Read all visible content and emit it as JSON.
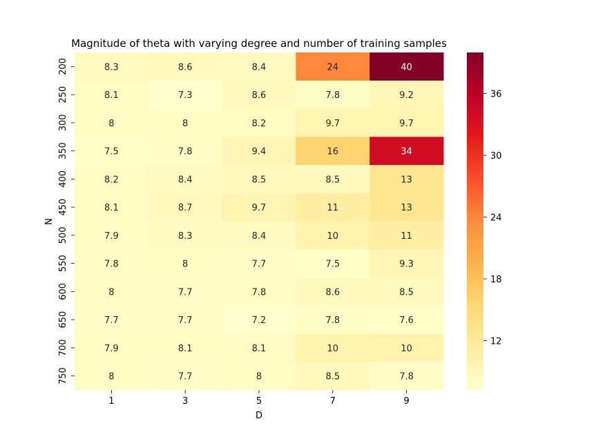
{
  "chart_data": {
    "type": "heatmap",
    "title": "Magnitude of theta with varying degree and number of training samples",
    "xlabel": "D",
    "ylabel": "N",
    "x_categories": [
      "1",
      "3",
      "5",
      "7",
      "9"
    ],
    "y_categories": [
      "200",
      "250",
      "300",
      "350",
      "400",
      "450",
      "500",
      "550",
      "600",
      "650",
      "700",
      "750"
    ],
    "values": [
      [
        8.3,
        8.6,
        8.4,
        24,
        40
      ],
      [
        8.1,
        7.3,
        8.6,
        7.8,
        9.2
      ],
      [
        8,
        8,
        8.2,
        9.7,
        9.7
      ],
      [
        7.5,
        7.8,
        9.4,
        16,
        34
      ],
      [
        8.2,
        8.4,
        8.5,
        8.5,
        13
      ],
      [
        8.1,
        8.7,
        9.7,
        11,
        13
      ],
      [
        7.9,
        8.3,
        8.4,
        10,
        11
      ],
      [
        7.8,
        8,
        7.7,
        7.5,
        9.3
      ],
      [
        8,
        7.7,
        7.8,
        8.6,
        8.5
      ],
      [
        7.7,
        7.7,
        7.2,
        7.8,
        7.6
      ],
      [
        7.9,
        8.1,
        8.1,
        10,
        10
      ],
      [
        8,
        7.7,
        8,
        8.5,
        7.8
      ]
    ],
    "colorbar": {
      "colormap": "YlOrRd",
      "range": [
        7.2,
        40
      ],
      "ticks": [
        "12",
        "18",
        "24",
        "30",
        "36"
      ]
    },
    "grid": false,
    "annotations": true
  }
}
